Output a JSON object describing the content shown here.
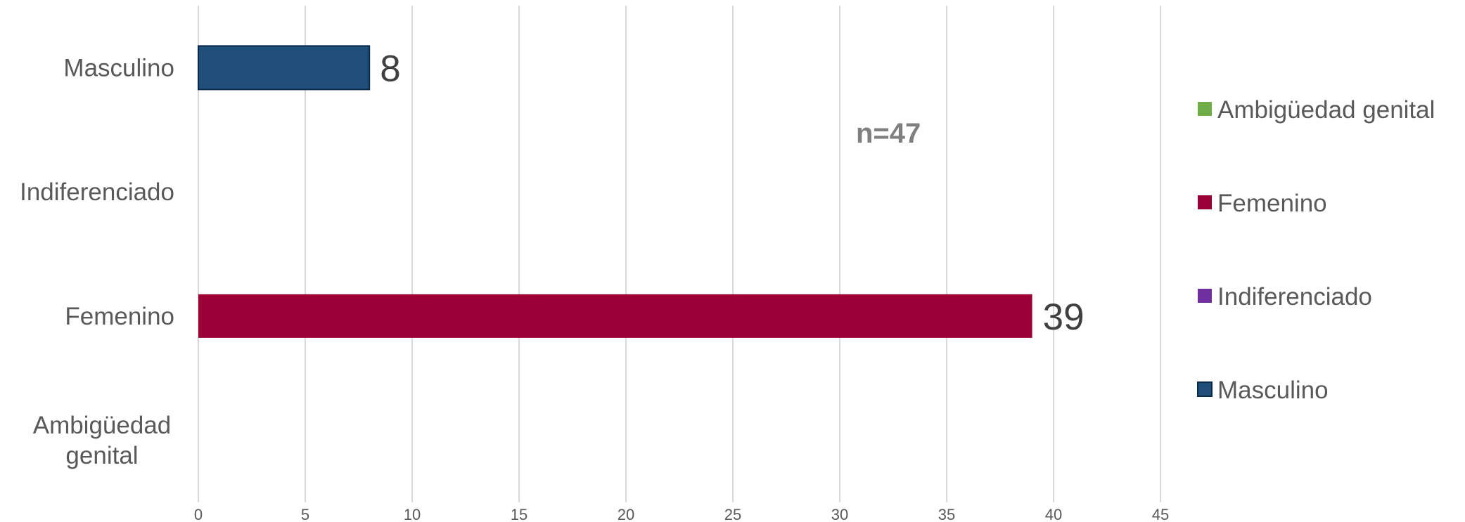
{
  "chart_data": {
    "type": "bar",
    "orientation": "horizontal",
    "categories": [
      "Masculino",
      "Indiferenciado",
      "Femenino",
      "Ambigüedad genital"
    ],
    "values": [
      8,
      0,
      39,
      0
    ],
    "data_labels": [
      "8",
      "",
      "39",
      ""
    ],
    "colors": [
      "#1f4e79",
      "#7030a0",
      "#9a0036",
      "#70ad47"
    ],
    "xlim": [
      0,
      45
    ],
    "xticks": [
      0,
      5,
      10,
      15,
      20,
      25,
      30,
      35,
      40,
      45
    ],
    "grid": true,
    "legend_position": "right",
    "legend": [
      {
        "label": "Ambigüedad genital",
        "color": "#70ad47"
      },
      {
        "label": "Femenino",
        "color": "#9a0036"
      },
      {
        "label": "Indiferenciado",
        "color": "#7030a0"
      },
      {
        "label": "Masculino",
        "color": "#1f4e79"
      }
    ],
    "annotation": "n=47",
    "title": "",
    "xlabel": "",
    "ylabel": ""
  }
}
